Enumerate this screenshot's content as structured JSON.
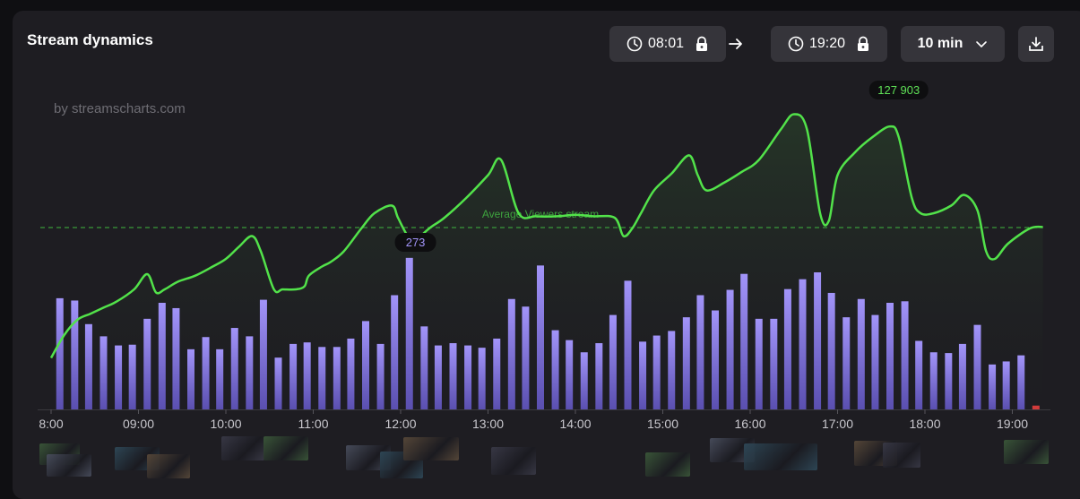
{
  "header": {
    "title": "Stream dynamics",
    "start_time": "08:01",
    "end_time": "19:20",
    "interval": "10 min"
  },
  "watermark": "by streamscharts.com",
  "colors": {
    "line": "#52e24a",
    "bar_top": "#a294f9",
    "bar_bottom": "#5a4fb0",
    "avg_line": "#3a9a3a",
    "panel": "#1e1d22"
  },
  "icons": [
    "clock-icon",
    "lock-icon",
    "arrow-right-icon",
    "chevron-down-icon",
    "download-icon"
  ],
  "chart_data": {
    "type": "bar+line",
    "x_ticks": [
      "8:00",
      "09:00",
      "10:00",
      "11:00",
      "12:00",
      "13:00",
      "14:00",
      "15:00",
      "16:00",
      "17:00",
      "18:00",
      "19:00"
    ],
    "avg_label": "Average Viewers stream",
    "peak_label": "127 903",
    "peak_bar_label": "273",
    "series": [
      {
        "kind": "bars",
        "x": [
          8.1,
          8.27,
          8.43,
          8.6,
          8.77,
          8.93,
          9.1,
          9.27,
          9.43,
          9.6,
          9.77,
          9.93,
          10.1,
          10.27,
          10.43,
          10.6,
          10.77,
          10.93,
          11.1,
          11.27,
          11.43,
          11.6,
          11.77,
          11.93,
          12.1,
          12.27,
          12.43,
          12.6,
          12.77,
          12.93,
          13.1,
          13.27,
          13.43,
          13.6,
          13.77,
          13.93,
          14.1,
          14.27,
          14.43,
          14.6,
          14.77,
          14.93,
          15.1,
          15.27,
          15.43,
          15.6,
          15.77,
          15.93,
          16.1,
          16.27,
          16.43,
          16.6,
          16.77,
          16.93,
          17.1,
          17.27,
          17.43,
          17.6,
          17.77,
          17.93,
          18.1,
          18.27,
          18.43,
          18.6,
          18.77,
          18.93,
          19.1,
          19.27
        ],
        "values": [
          146,
          143,
          112,
          96,
          84,
          85,
          119,
          140,
          133,
          79,
          95,
          79,
          107,
          96,
          144,
          68,
          86,
          88,
          82,
          82,
          93,
          116,
          86,
          150,
          199,
          109,
          84,
          87,
          84,
          81,
          93,
          145,
          135,
          189,
          104,
          91,
          75,
          87,
          124,
          169,
          89,
          97,
          103,
          121,
          150,
          130,
          157,
          178,
          119,
          119,
          158,
          171,
          180,
          153,
          121,
          145,
          124,
          140,
          142,
          90,
          75,
          74,
          86,
          111,
          59,
          63,
          71,
          5
        ]
      },
      {
        "kind": "line",
        "x": [
          8.0,
          8.15,
          8.3,
          8.45,
          8.6,
          8.75,
          8.95,
          9.1,
          9.2,
          9.3,
          9.45,
          9.65,
          9.85,
          10.0,
          10.15,
          10.3,
          10.4,
          10.55,
          10.65,
          10.8,
          10.9,
          10.95,
          11.1,
          11.2,
          11.35,
          11.55,
          11.7,
          11.9,
          11.97,
          12.08,
          12.17,
          12.25,
          12.35,
          12.5,
          12.75,
          13.0,
          13.15,
          13.35,
          13.55,
          13.8,
          14.0,
          14.2,
          14.45,
          14.55,
          14.65,
          14.75,
          14.9,
          15.1,
          15.3,
          15.4,
          15.5,
          15.7,
          15.9,
          16.1,
          16.35,
          16.5,
          16.65,
          16.8,
          16.9,
          17.0,
          17.2,
          17.4,
          17.6,
          17.7,
          17.85,
          17.95,
          18.1,
          18.3,
          18.45,
          18.6,
          18.7,
          18.8,
          18.95,
          19.2,
          19.35
        ],
        "values": [
          15,
          30,
          40,
          44,
          48,
          52,
          60,
          70,
          58,
          60,
          65,
          69,
          75,
          80,
          88,
          95,
          85,
          60,
          60,
          60,
          62,
          69,
          75,
          78,
          85,
          100,
          110,
          115,
          107,
          95,
          90,
          96,
          101,
          107,
          120,
          135,
          145,
          110,
          108,
          108,
          109,
          108,
          107,
          95,
          100,
          110,
          125,
          136,
          148,
          135,
          125,
          130,
          137,
          145,
          165,
          175,
          165,
          110,
          105,
          135,
          150,
          160,
          167,
          160,
          120,
          110,
          110,
          115,
          122,
          112,
          85,
          80,
          90,
          100,
          101
        ]
      }
    ],
    "average": 100,
    "peak_x": 17.7,
    "bar_label_x": 12.17
  }
}
